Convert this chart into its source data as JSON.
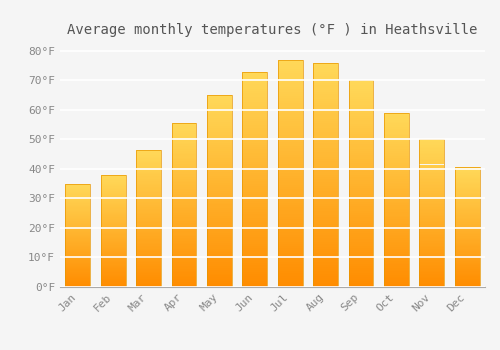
{
  "title": "Average monthly temperatures (°F ) in Heathsville",
  "months": [
    "Jan",
    "Feb",
    "Mar",
    "Apr",
    "May",
    "Jun",
    "Jul",
    "Aug",
    "Sep",
    "Oct",
    "Nov",
    "Dec"
  ],
  "values": [
    35,
    38,
    46.5,
    55.5,
    65,
    73,
    77,
    76,
    70,
    59,
    50,
    40.5
  ],
  "bar_color_bottom": "#FFAA00",
  "bar_color_top": "#FFD966",
  "bar_edge_color": "#E89500",
  "background_color": "#F5F5F5",
  "grid_color": "#FFFFFF",
  "ylim": [
    0,
    83
  ],
  "yticks": [
    0,
    10,
    20,
    30,
    40,
    50,
    60,
    70,
    80
  ],
  "ytick_labels": [
    "0°F",
    "10°F",
    "20°F",
    "30°F",
    "40°F",
    "50°F",
    "60°F",
    "70°F",
    "80°F"
  ],
  "title_fontsize": 10,
  "tick_fontsize": 8,
  "tick_color": "#888888",
  "title_color": "#555555",
  "font_family": "monospace"
}
